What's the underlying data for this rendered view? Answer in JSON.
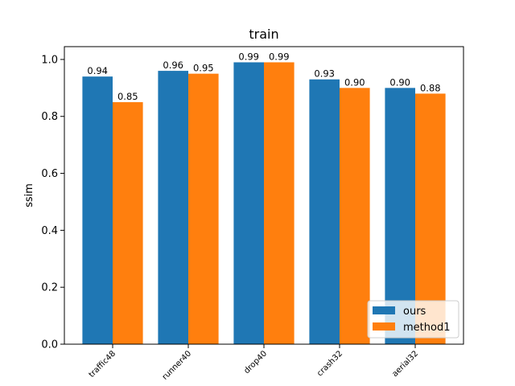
{
  "chart_data": {
    "type": "bar",
    "title": "train",
    "xlabel": "",
    "ylabel": "ssim",
    "categories": [
      "traffic48",
      "runner40",
      "drop40",
      "crash32",
      "aerial32"
    ],
    "series": [
      {
        "name": "ours",
        "values": [
          0.94,
          0.96,
          0.99,
          0.93,
          0.9
        ],
        "color": "#1f77b4",
        "labels": [
          "0.94",
          "0.96",
          "0.99",
          "0.93",
          "0.90"
        ]
      },
      {
        "name": "method1",
        "values": [
          0.85,
          0.95,
          0.99,
          0.9,
          0.88
        ],
        "color": "#ff7f0e",
        "labels": [
          "0.85",
          "0.95",
          "0.99",
          "0.90",
          "0.88"
        ]
      }
    ],
    "ylim": [
      0,
      1.045
    ],
    "yticks": [
      "0.0",
      "0.2",
      "0.4",
      "0.6",
      "0.8",
      "1.0"
    ],
    "grid": false,
    "legend_position": "lower-right"
  }
}
